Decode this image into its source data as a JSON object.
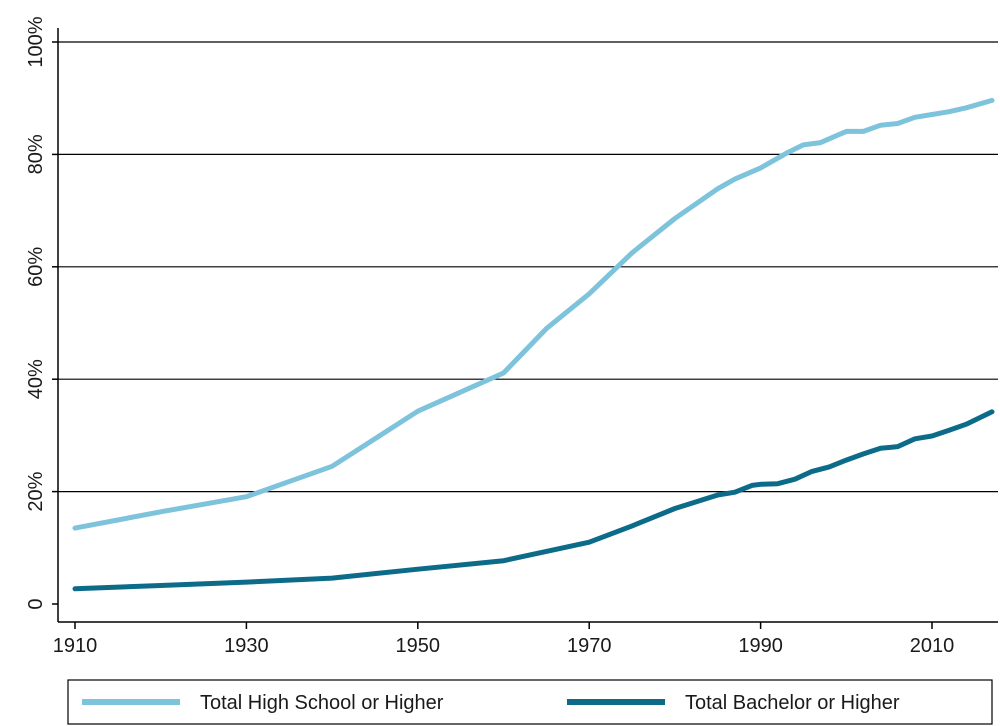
{
  "chart_data": {
    "type": "line",
    "title": "",
    "xlabel": "",
    "ylabel": "",
    "xlim": [
      1909,
      2017
    ],
    "ylim": [
      0,
      100
    ],
    "x_ticks": [
      1910,
      1930,
      1950,
      1970,
      1990,
      2010
    ],
    "y_ticks": [
      0,
      20,
      40,
      60,
      80,
      100
    ],
    "y_tick_labels": [
      "0",
      "20%",
      "40%",
      "60%",
      "80%",
      "100%"
    ],
    "grid": "horizontal",
    "legend_position": "bottom",
    "series": [
      {
        "name": "Total High School or Higher",
        "color": "#7ec3dc",
        "x": [
          1910,
          1920,
          1930,
          1940,
          1950,
          1960,
          1965,
          1970,
          1975,
          1980,
          1985,
          1987,
          1990,
          1993,
          1995,
          1997,
          2000,
          2002,
          2004,
          2006,
          2008,
          2010,
          2012,
          2014,
          2017
        ],
        "y": [
          13.5,
          16.4,
          19.1,
          24.5,
          34.3,
          41.1,
          49.0,
          55.2,
          62.5,
          68.6,
          73.9,
          75.6,
          77.6,
          80.2,
          81.7,
          82.1,
          84.1,
          84.1,
          85.2,
          85.5,
          86.6,
          87.1,
          87.6,
          88.3,
          89.6
        ]
      },
      {
        "name": "Total Bachelor or Higher",
        "color": "#0d6b8a",
        "x": [
          1910,
          1920,
          1930,
          1940,
          1950,
          1960,
          1970,
          1975,
          1980,
          1985,
          1987,
          1989,
          1990,
          1992,
          1994,
          1996,
          1998,
          2000,
          2002,
          2004,
          2006,
          2008,
          2010,
          2012,
          2014,
          2017
        ],
        "y": [
          2.7,
          3.3,
          3.9,
          4.6,
          6.2,
          7.7,
          11.0,
          13.9,
          17.0,
          19.4,
          19.9,
          21.1,
          21.3,
          21.4,
          22.2,
          23.6,
          24.4,
          25.6,
          26.7,
          27.7,
          28.0,
          29.4,
          29.9,
          30.9,
          32.0,
          34.2
        ]
      }
    ]
  }
}
